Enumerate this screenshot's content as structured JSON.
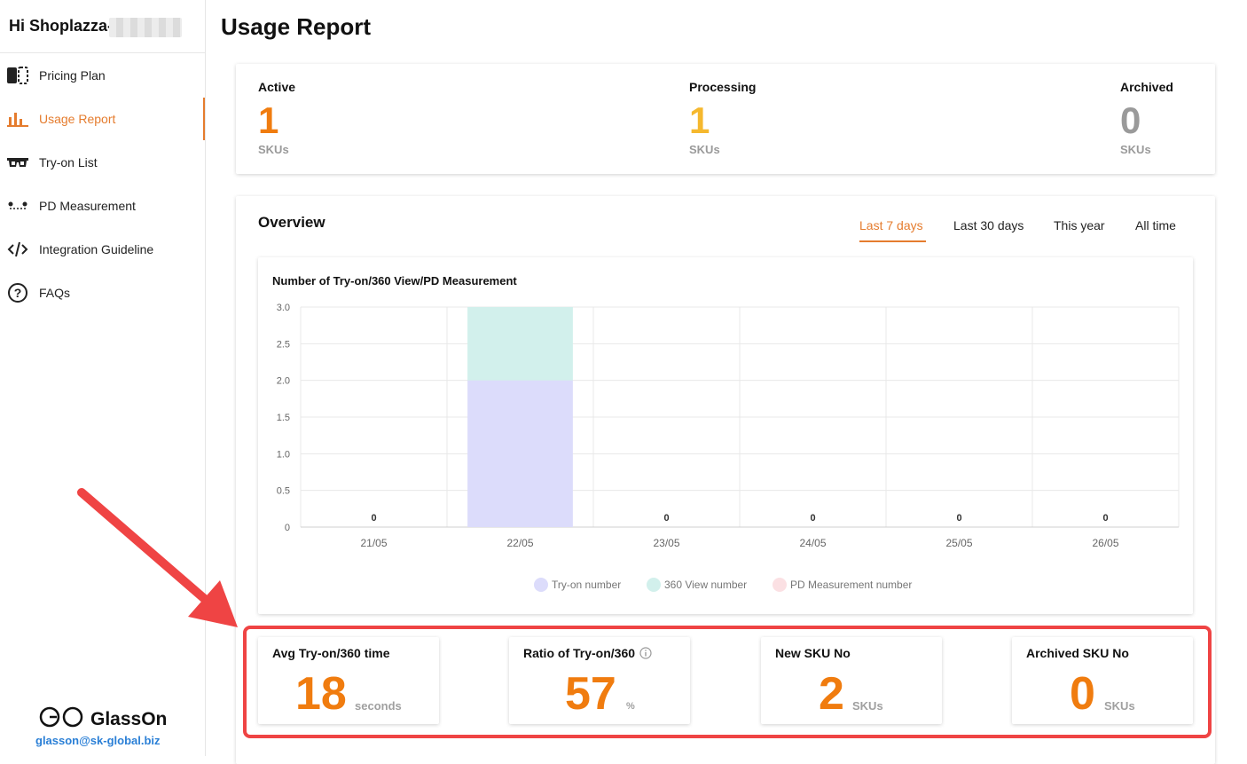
{
  "sidebar": {
    "greeting": "Hi Shoplazza-",
    "items": [
      {
        "label": "Pricing Plan",
        "icon": "pricing-icon"
      },
      {
        "label": "Usage Report",
        "icon": "bar-chart-icon"
      },
      {
        "label": "Try-on List",
        "icon": "glasses-icon"
      },
      {
        "label": "PD Measurement",
        "icon": "pd-icon"
      },
      {
        "label": "Integration Guideline",
        "icon": "code-icon"
      },
      {
        "label": "FAQs",
        "icon": "question-icon"
      }
    ],
    "brand": "GlassOn",
    "email": "glasson@sk-global.biz"
  },
  "page_title": "Usage Report",
  "status": {
    "active": {
      "label": "Active",
      "value": "1",
      "unit": "SKUs"
    },
    "processing": {
      "label": "Processing",
      "value": "1",
      "unit": "SKUs"
    },
    "archived": {
      "label": "Archived",
      "value": "0",
      "unit": "SKUs"
    }
  },
  "overview": {
    "title": "Overview",
    "tabs": [
      "Last 7 days",
      "Last 30 days",
      "This year",
      "All time"
    ],
    "active_tab": "Last 7 days"
  },
  "chart_data": {
    "type": "bar",
    "title": "Number of Try-on/360 View/PD Measurement",
    "categories": [
      "21/05",
      "22/05",
      "23/05",
      "24/05",
      "25/05",
      "26/05"
    ],
    "series": [
      {
        "name": "Try-on number",
        "values": [
          0,
          2,
          0,
          0,
          0,
          0
        ],
        "color": "#dcdcfb"
      },
      {
        "name": "360 View number",
        "values": [
          0,
          1,
          0,
          0,
          0,
          0
        ],
        "color": "#d2f0ec"
      },
      {
        "name": "PD Measurement number",
        "values": [
          0,
          0,
          0,
          0,
          0,
          0
        ],
        "color": "#fbe0e3"
      }
    ],
    "total_labels": [
      "0",
      "",
      "0",
      "0",
      "0",
      "0"
    ],
    "yticks": [
      "0",
      "0.5",
      "1.0",
      "1.5",
      "2.0",
      "2.5",
      "3.0"
    ],
    "ylim": [
      0,
      3
    ],
    "stacked": true,
    "legend_position": "bottom",
    "grid": true
  },
  "metrics": [
    {
      "label": "Avg Try-on/360 time",
      "value": "18",
      "unit": "seconds"
    },
    {
      "label": "Ratio of Try-on/360",
      "value": "57",
      "unit": "%",
      "info": "info-icon"
    },
    {
      "label": "New SKU No",
      "value": "2",
      "unit": "SKUs"
    },
    {
      "label": "Archived SKU No",
      "value": "0",
      "unit": "SKUs"
    }
  ],
  "colors": {
    "accent": "#e57c2e",
    "active_value": "#f07c0f",
    "processing_value": "#f5b82e",
    "archived_value": "#9a9a9a",
    "highlight": "#ef4444"
  }
}
